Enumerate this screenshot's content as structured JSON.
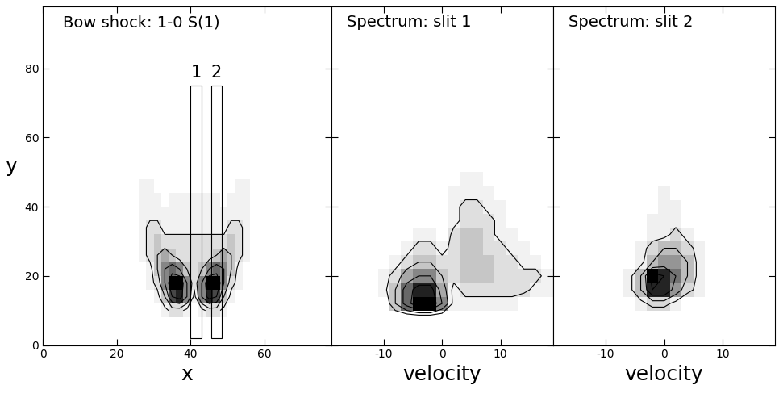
{
  "chart_data": [
    {
      "type": "heatmap",
      "title": "Bow shock: 1-0 S(1)",
      "x_label": "x",
      "y_label": "y",
      "x": [
        27,
        29,
        31,
        33,
        35,
        37,
        39,
        41,
        43,
        45,
        47,
        49,
        51,
        53,
        55
      ],
      "y": [
        10,
        14,
        18,
        22,
        26,
        30,
        34,
        38,
        42,
        46
      ],
      "cells": [
        [
          0,
          0,
          0,
          1,
          2,
          2,
          1,
          0,
          1,
          2,
          2,
          1,
          0,
          0,
          0
        ],
        [
          0,
          0,
          1,
          3,
          7,
          8,
          5,
          1,
          5,
          8,
          7,
          3,
          1,
          0,
          0
        ],
        [
          0,
          1,
          2,
          5,
          9,
          9,
          5,
          2,
          5,
          9,
          9,
          5,
          2,
          1,
          0
        ],
        [
          0,
          1,
          3,
          5,
          6,
          5,
          3,
          2,
          3,
          5,
          6,
          5,
          3,
          1,
          0
        ],
        [
          1,
          2,
          3,
          4,
          3,
          2,
          2,
          2,
          2,
          2,
          3,
          4,
          3,
          2,
          1
        ],
        [
          1,
          2,
          3,
          2,
          2,
          2,
          2,
          2,
          2,
          2,
          2,
          2,
          3,
          2,
          1
        ],
        [
          1,
          2,
          2,
          1,
          1,
          1,
          1,
          1,
          1,
          1,
          1,
          1,
          2,
          2,
          1
        ],
        [
          1,
          1,
          1,
          1,
          1,
          1,
          1,
          1,
          1,
          1,
          1,
          1,
          1,
          1,
          1
        ],
        [
          1,
          1,
          1,
          0,
          1,
          1,
          1,
          1,
          1,
          1,
          1,
          0,
          1,
          1,
          1
        ],
        [
          1,
          1,
          0,
          0,
          0,
          0,
          0,
          0,
          0,
          0,
          0,
          0,
          0,
          1,
          1
        ]
      ],
      "contour_levels": [
        1.5,
        3,
        5,
        7
      ],
      "xlim": [
        0,
        78
      ],
      "ylim": [
        0,
        98
      ],
      "xticks": [
        0,
        20,
        40,
        60
      ],
      "yticks": [
        0,
        20,
        40,
        60,
        80
      ],
      "slits": [
        {
          "label": "1",
          "x": [
            40,
            43
          ],
          "y": [
            2,
            75
          ]
        },
        {
          "label": "2",
          "x": [
            45.5,
            48.5
          ],
          "y": [
            2,
            75
          ]
        }
      ]
    },
    {
      "type": "heatmap",
      "title": "Spectrum: slit 1",
      "x_label": "velocity",
      "x": [
        -12,
        -10,
        -8,
        -6,
        -4,
        -2,
        0,
        2,
        4,
        6,
        8,
        10,
        12,
        14,
        16,
        18
      ],
      "y": [
        8,
        12,
        16,
        20,
        24,
        28,
        32,
        36,
        40,
        44,
        48
      ],
      "cells": [
        [
          0,
          0,
          0,
          0,
          0,
          0,
          0,
          0,
          0,
          0,
          0,
          0,
          0,
          0,
          0,
          0
        ],
        [
          0,
          0,
          3,
          6,
          9,
          9,
          5,
          1,
          1,
          1,
          1,
          1,
          1,
          0,
          0,
          0
        ],
        [
          0,
          1,
          3,
          6,
          8,
          8,
          4,
          1,
          2,
          2,
          2,
          2,
          2,
          2,
          1,
          1
        ],
        [
          0,
          1,
          2,
          4,
          5,
          5,
          3,
          2,
          3,
          3,
          3,
          2,
          2,
          2,
          2,
          1
        ],
        [
          0,
          0,
          1,
          2,
          3,
          3,
          2,
          2,
          3,
          3,
          3,
          2,
          2,
          1,
          1,
          0
        ],
        [
          0,
          0,
          0,
          1,
          2,
          2,
          1,
          2,
          3,
          3,
          2,
          2,
          1,
          1,
          0,
          0
        ],
        [
          0,
          0,
          0,
          0,
          1,
          1,
          0,
          2,
          3,
          3,
          2,
          1,
          1,
          0,
          0,
          0
        ],
        [
          0,
          0,
          0,
          0,
          0,
          0,
          0,
          1,
          2,
          2,
          2,
          1,
          0,
          0,
          0,
          0
        ],
        [
          0,
          0,
          0,
          0,
          0,
          0,
          0,
          1,
          2,
          2,
          1,
          1,
          0,
          0,
          0,
          0
        ],
        [
          0,
          0,
          0,
          0,
          0,
          0,
          0,
          1,
          1,
          1,
          1,
          0,
          0,
          0,
          0,
          0
        ],
        [
          0,
          0,
          0,
          0,
          0,
          0,
          0,
          0,
          1,
          1,
          0,
          0,
          0,
          0,
          0,
          0
        ]
      ],
      "contour_levels": [
        1.5,
        3,
        5,
        7
      ],
      "xlim": [
        -19,
        19
      ],
      "ylim": [
        0,
        98
      ],
      "xticks": [
        -10,
        0,
        10
      ],
      "yticks": [
        0,
        20,
        40,
        60,
        80
      ],
      "tick_labels": "x"
    },
    {
      "type": "heatmap",
      "title": "Spectrum: slit 2",
      "x_label": "velocity",
      "x": [
        -12,
        -10,
        -8,
        -6,
        -4,
        -2,
        0,
        2,
        4,
        6,
        8,
        10,
        12,
        14,
        16,
        18
      ],
      "y": [
        8,
        12,
        16,
        20,
        24,
        28,
        32,
        36,
        40,
        44,
        48
      ],
      "cells": [
        [
          0,
          0,
          0,
          0,
          0,
          0,
          0,
          0,
          0,
          0,
          0,
          0,
          0,
          0,
          0,
          0
        ],
        [
          0,
          0,
          0,
          0,
          1,
          2,
          2,
          1,
          0,
          0,
          0,
          0,
          0,
          0,
          0,
          0
        ],
        [
          0,
          0,
          0,
          1,
          3,
          7,
          7,
          4,
          2,
          1,
          0,
          0,
          0,
          0,
          0,
          0
        ],
        [
          0,
          0,
          0,
          1,
          3,
          8,
          7,
          5,
          3,
          1,
          0,
          0,
          0,
          0,
          0,
          0
        ],
        [
          0,
          0,
          0,
          0,
          1,
          3,
          4,
          4,
          3,
          1,
          0,
          0,
          0,
          0,
          0,
          0
        ],
        [
          0,
          0,
          0,
          0,
          1,
          2,
          3,
          3,
          2,
          1,
          0,
          0,
          0,
          0,
          0,
          0
        ],
        [
          0,
          0,
          0,
          0,
          0,
          1,
          1,
          2,
          1,
          0,
          0,
          0,
          0,
          0,
          0,
          0
        ],
        [
          0,
          0,
          0,
          0,
          0,
          1,
          1,
          1,
          0,
          0,
          0,
          0,
          0,
          0,
          0,
          0
        ],
        [
          0,
          0,
          0,
          0,
          0,
          0,
          1,
          1,
          0,
          0,
          0,
          0,
          0,
          0,
          0,
          0
        ],
        [
          0,
          0,
          0,
          0,
          0,
          0,
          1,
          0,
          0,
          0,
          0,
          0,
          0,
          0,
          0,
          0
        ],
        [
          0,
          0,
          0,
          0,
          0,
          0,
          0,
          0,
          0,
          0,
          0,
          0,
          0,
          0,
          0,
          0
        ]
      ],
      "contour_levels": [
        1.5,
        3,
        5,
        7
      ],
      "xlim": [
        -19,
        19
      ],
      "ylim": [
        0,
        98
      ],
      "xticks": [
        -10,
        0,
        10
      ],
      "yticks": [
        0,
        20,
        40,
        60,
        80
      ],
      "tick_labels": "x"
    }
  ]
}
